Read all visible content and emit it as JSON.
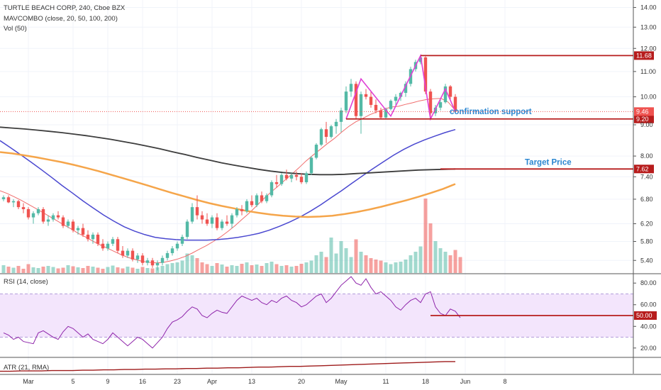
{
  "header": {
    "symbol": "TURTLE BEACH CORP, 240, Cboe BZX",
    "indicator": "MAVCOMBO (close, 20, 50, 100, 200)",
    "volume": "Vol (50)"
  },
  "rsi_panel": {
    "label": "RSI (14, close)"
  },
  "atr_panel": {
    "label": "ATR (21, RMA)"
  },
  "colors": {
    "up": "#53b9a6",
    "down": "#ef5350",
    "ma20": "#f06b6b",
    "ma50": "#4a48d0",
    "ma100": "#f5a54a",
    "ma200": "#3d3d3d",
    "pattern": "#e040d6",
    "level": "#b71c1c",
    "annotation": "#2a86d1",
    "rsi": "#8e24aa",
    "rsi_band": "#f3e5fc",
    "atr": "#9e1b1b"
  },
  "chart_data": [
    {
      "type": "candlestick",
      "title": "TURTLE BEACH CORP, 240, Cboe BZX",
      "xlabel": "",
      "ylabel": "",
      "ylim": [
        5.15,
        14.4
      ],
      "y_scale": "log",
      "yticks": [
        "14.00",
        "13.00",
        "12.00",
        "11.00",
        "10.00",
        "9.00",
        "8.00",
        "7.40",
        "6.80",
        "6.20",
        "5.80",
        "5.40"
      ],
      "xticks": [
        "Mar",
        "5",
        "9",
        "16",
        "23",
        "Apr",
        "13",
        "20",
        "May",
        "11",
        "18",
        "Jun",
        "8"
      ],
      "grid": true,
      "candles": [
        [
          6.8,
          6.9,
          6.75,
          6.85
        ],
        [
          6.85,
          6.9,
          6.7,
          6.72
        ],
        [
          6.72,
          6.8,
          6.6,
          6.75
        ],
        [
          6.75,
          6.78,
          6.55,
          6.6
        ],
        [
          6.6,
          6.7,
          6.45,
          6.55
        ],
        [
          6.55,
          6.6,
          6.3,
          6.35
        ],
        [
          6.35,
          6.5,
          6.2,
          6.45
        ],
        [
          6.45,
          6.6,
          6.4,
          6.55
        ],
        [
          6.55,
          6.6,
          6.2,
          6.25
        ],
        [
          6.25,
          6.4,
          6.15,
          6.3
        ],
        [
          6.3,
          6.45,
          6.25,
          6.4
        ],
        [
          6.4,
          6.5,
          6.3,
          6.35
        ],
        [
          6.35,
          6.4,
          6.1,
          6.15
        ],
        [
          6.15,
          6.3,
          6.1,
          6.25
        ],
        [
          6.25,
          6.3,
          6.0,
          6.05
        ],
        [
          6.05,
          6.15,
          5.95,
          6.1
        ],
        [
          6.1,
          6.2,
          5.9,
          5.95
        ],
        [
          5.95,
          6.05,
          5.8,
          5.85
        ],
        [
          5.85,
          6.0,
          5.75,
          5.95
        ],
        [
          5.95,
          6.0,
          5.7,
          5.75
        ],
        [
          5.75,
          5.85,
          5.6,
          5.65
        ],
        [
          5.65,
          5.8,
          5.6,
          5.75
        ],
        [
          5.75,
          5.9,
          5.7,
          5.85
        ],
        [
          5.85,
          5.9,
          5.55,
          5.6
        ],
        [
          5.6,
          5.7,
          5.45,
          5.5
        ],
        [
          5.5,
          5.65,
          5.45,
          5.6
        ],
        [
          5.6,
          5.65,
          5.38,
          5.42
        ],
        [
          5.42,
          5.55,
          5.35,
          5.5
        ],
        [
          5.5,
          5.55,
          5.3,
          5.35
        ],
        [
          5.35,
          5.45,
          5.3,
          5.4
        ],
        [
          5.4,
          5.45,
          5.25,
          5.3
        ],
        [
          5.3,
          5.4,
          5.2,
          5.35
        ],
        [
          5.35,
          5.5,
          5.3,
          5.45
        ],
        [
          5.45,
          5.6,
          5.4,
          5.55
        ],
        [
          5.55,
          5.7,
          5.5,
          5.65
        ],
        [
          5.65,
          5.8,
          5.6,
          5.75
        ],
        [
          5.75,
          5.95,
          5.7,
          5.9
        ],
        [
          5.9,
          6.3,
          5.85,
          6.25
        ],
        [
          6.25,
          6.7,
          6.2,
          6.6
        ],
        [
          6.6,
          6.9,
          6.3,
          6.4
        ],
        [
          6.4,
          6.5,
          6.2,
          6.3
        ],
        [
          6.3,
          6.45,
          6.15,
          6.2
        ],
        [
          6.2,
          6.4,
          6.1,
          6.35
        ],
        [
          6.35,
          6.45,
          6.05,
          6.1
        ],
        [
          6.1,
          6.3,
          6.05,
          6.25
        ],
        [
          6.25,
          6.4,
          6.15,
          6.2
        ],
        [
          6.2,
          6.45,
          6.1,
          6.4
        ],
        [
          6.4,
          6.6,
          6.35,
          6.55
        ],
        [
          6.55,
          6.65,
          6.4,
          6.5
        ],
        [
          6.5,
          6.8,
          6.45,
          6.75
        ],
        [
          6.75,
          6.9,
          6.6,
          6.65
        ],
        [
          6.65,
          6.95,
          6.6,
          6.9
        ],
        [
          6.9,
          7.0,
          6.7,
          6.75
        ],
        [
          6.75,
          6.95,
          6.7,
          6.9
        ],
        [
          6.9,
          7.3,
          6.85,
          7.25
        ],
        [
          7.25,
          7.45,
          7.1,
          7.2
        ],
        [
          7.2,
          7.5,
          7.15,
          7.45
        ],
        [
          7.45,
          7.6,
          7.3,
          7.35
        ],
        [
          7.35,
          7.5,
          7.25,
          7.45
        ],
        [
          7.45,
          7.55,
          7.3,
          7.4
        ],
        [
          7.4,
          7.5,
          7.2,
          7.25
        ],
        [
          7.25,
          7.55,
          7.2,
          7.5
        ],
        [
          7.5,
          8.0,
          7.45,
          7.95
        ],
        [
          7.95,
          8.4,
          7.9,
          8.35
        ],
        [
          8.35,
          8.9,
          8.3,
          8.85
        ],
        [
          8.85,
          9.1,
          8.4,
          8.6
        ],
        [
          8.6,
          9.0,
          8.55,
          8.95
        ],
        [
          8.95,
          9.2,
          8.7,
          9.1
        ],
        [
          9.1,
          9.6,
          8.75,
          9.5
        ],
        [
          9.5,
          10.4,
          9.4,
          10.2
        ],
        [
          10.2,
          10.7,
          10.0,
          10.5
        ],
        [
          10.5,
          10.6,
          9.2,
          9.3
        ],
        [
          9.3,
          10.2,
          8.7,
          10.1
        ],
        [
          10.1,
          10.3,
          9.9,
          10.0
        ],
        [
          10.0,
          10.2,
          9.6,
          9.7
        ],
        [
          9.7,
          9.9,
          9.4,
          9.5
        ],
        [
          9.5,
          9.6,
          9.2,
          9.25
        ],
        [
          9.25,
          9.6,
          9.2,
          9.55
        ],
        [
          9.55,
          9.9,
          9.5,
          9.85
        ],
        [
          9.85,
          10.1,
          9.7,
          10.0
        ],
        [
          10.0,
          10.2,
          9.85,
          10.15
        ],
        [
          10.15,
          10.6,
          10.0,
          10.5
        ],
        [
          10.5,
          11.2,
          10.4,
          11.1
        ],
        [
          11.1,
          11.5,
          11.0,
          11.4
        ],
        [
          11.4,
          11.68,
          11.3,
          11.6
        ],
        [
          11.6,
          11.65,
          10.1,
          10.2
        ],
        [
          10.2,
          10.3,
          9.25,
          9.4
        ],
        [
          9.4,
          9.7,
          9.3,
          9.6
        ],
        [
          9.6,
          9.9,
          9.5,
          9.8
        ],
        [
          9.8,
          10.5,
          9.75,
          10.4
        ],
        [
          10.4,
          10.45,
          9.9,
          10.0
        ],
        [
          10.0,
          10.1,
          9.4,
          9.46
        ]
      ],
      "volumes": [
        0.22,
        0.18,
        0.15,
        0.2,
        0.12,
        0.25,
        0.16,
        0.14,
        0.18,
        0.2,
        0.17,
        0.13,
        0.15,
        0.22,
        0.19,
        0.16,
        0.14,
        0.2,
        0.18,
        0.15,
        0.12,
        0.17,
        0.21,
        0.16,
        0.13,
        0.18,
        0.15,
        0.12,
        0.17,
        0.14,
        0.13,
        0.16,
        0.2,
        0.25,
        0.28,
        0.3,
        0.35,
        0.55,
        0.5,
        0.42,
        0.3,
        0.25,
        0.2,
        0.28,
        0.24,
        0.18,
        0.22,
        0.2,
        0.26,
        0.3,
        0.22,
        0.24,
        0.2,
        0.28,
        0.32,
        0.25,
        0.2,
        0.22,
        0.18,
        0.2,
        0.26,
        0.3,
        0.35,
        0.5,
        0.6,
        0.45,
        1.0,
        0.55,
        0.9,
        0.7,
        0.45,
        0.95,
        0.6,
        0.5,
        0.42,
        0.38,
        0.35,
        0.3,
        0.25,
        0.3,
        0.32,
        0.38,
        0.5,
        0.6,
        0.75,
        2.1,
        1.4,
        0.9,
        0.7,
        0.6,
        0.5,
        0.65,
        0.45
      ],
      "ma": [
        {
          "name": "MAVCOMBO 20",
          "period": 20,
          "values": [
            7.02,
            6.95,
            6.86,
            6.77,
            6.67,
            6.57,
            6.47,
            6.37,
            6.27,
            6.17,
            6.08,
            5.98,
            5.9,
            5.81,
            5.73,
            5.66,
            5.59,
            5.52,
            5.46,
            5.42,
            5.38,
            5.36,
            5.35,
            5.36,
            5.39,
            5.43,
            5.48,
            5.55,
            5.63,
            5.71,
            5.8,
            5.9,
            6.02,
            6.15,
            6.3,
            6.45,
            6.62,
            6.8,
            6.97,
            7.13,
            7.3,
            7.47,
            7.65,
            7.85,
            8.03,
            8.2,
            8.38,
            8.55,
            8.75,
            8.94,
            9.1,
            9.22,
            9.35,
            9.45,
            9.55,
            9.62,
            9.65,
            9.72,
            9.78,
            9.85,
            9.9,
            9.93,
            9.94,
            9.8,
            9.5
          ]
        },
        {
          "name": "MAVCOMBO 50",
          "period": 50,
          "values": [
            8.48,
            8.26,
            8.04,
            7.82,
            7.6,
            7.38,
            7.16,
            6.96,
            6.76,
            6.58,
            6.41,
            6.26,
            6.13,
            6.03,
            5.95,
            5.89,
            5.86,
            5.84,
            5.83,
            5.83,
            5.83,
            5.84,
            5.86,
            5.89,
            5.93,
            5.98,
            6.05,
            6.14,
            6.24,
            6.36,
            6.5,
            6.66,
            6.84,
            7.02,
            7.22,
            7.42,
            7.62,
            7.82,
            8.02,
            8.2,
            8.36,
            8.5,
            8.62,
            8.74,
            8.84
          ]
        },
        {
          "name": "MAVCOMBO 100",
          "period": 100,
          "values": [
            8.12,
            8.08,
            8.02,
            7.96,
            7.89,
            7.82,
            7.74,
            7.65,
            7.56,
            7.46,
            7.36,
            7.26,
            7.16,
            7.06,
            6.96,
            6.87,
            6.78,
            6.7,
            6.63,
            6.57,
            6.51,
            6.46,
            6.42,
            6.39,
            6.37,
            6.36,
            6.37,
            6.39,
            6.43,
            6.48,
            6.54,
            6.61,
            6.69,
            6.77,
            6.86,
            6.96,
            7.07,
            7.2
          ]
        },
        {
          "name": "MAVCOMBO 200",
          "period": 200,
          "values": [
            8.92,
            8.89,
            8.86,
            8.82,
            8.78,
            8.74,
            8.69,
            8.64,
            8.58,
            8.52,
            8.45,
            8.38,
            8.3,
            8.22,
            8.13,
            8.05,
            7.96,
            7.88,
            7.8,
            7.73,
            7.67,
            7.61,
            7.56,
            7.52,
            7.49,
            7.47,
            7.46,
            7.46,
            7.47,
            7.49,
            7.51,
            7.53,
            7.55,
            7.57,
            7.59,
            7.6,
            7.61,
            7.62
          ]
        }
      ],
      "pattern": {
        "name": "double top",
        "points": [
          [
            9.2,
            69
          ],
          [
            10.7,
            72
          ],
          [
            9.3,
            78
          ],
          [
            11.68,
            84
          ],
          [
            9.2,
            86
          ],
          [
            10.3,
            89
          ],
          [
            9.46,
            91
          ]
        ]
      },
      "levels": [
        {
          "value": 11.68,
          "label": "11.68",
          "note": ""
        },
        {
          "value": 9.2,
          "label": "9.20",
          "note": "confirmation support"
        },
        {
          "value": 7.62,
          "label": "7.62",
          "note": "Target Price"
        }
      ],
      "last_price": {
        "value": 9.46,
        "label": "9.46"
      }
    },
    {
      "type": "line",
      "title": "RSI (14, close)",
      "ylim": [
        12,
        88
      ],
      "yticks": [
        "80.00",
        "60.00",
        "40.00",
        "20.00"
      ],
      "band": [
        30,
        70
      ],
      "level": {
        "value": 50.0,
        "label": "50.00"
      },
      "values": [
        34,
        32,
        28,
        30,
        26,
        25,
        24,
        34,
        36,
        33,
        30,
        28,
        35,
        40,
        38,
        34,
        30,
        33,
        28,
        26,
        24,
        28,
        34,
        30,
        26,
        22,
        26,
        30,
        28,
        24,
        20,
        25,
        30,
        38,
        44,
        46,
        49,
        54,
        58,
        56,
        50,
        48,
        52,
        55,
        53,
        52,
        58,
        64,
        68,
        66,
        64,
        66,
        62,
        60,
        64,
        62,
        66,
        68,
        64,
        62,
        58,
        60,
        64,
        68,
        70,
        62,
        66,
        72,
        78,
        82,
        86,
        80,
        78,
        84,
        76,
        70,
        72,
        68,
        64,
        58,
        55,
        60,
        64,
        66,
        62,
        70,
        72,
        58,
        52,
        50,
        56,
        54,
        48
      ]
    },
    {
      "type": "line",
      "title": "ATR (21, RMA)",
      "ylim": [
        0.15,
        0.6
      ],
      "values": [
        0.22,
        0.22,
        0.23,
        0.23,
        0.23,
        0.24,
        0.24,
        0.24,
        0.25,
        0.25,
        0.26,
        0.26,
        0.27,
        0.27,
        0.28,
        0.28,
        0.29,
        0.29,
        0.3,
        0.3,
        0.31,
        0.31,
        0.32,
        0.32,
        0.33,
        0.34,
        0.34,
        0.35,
        0.36,
        0.36,
        0.37,
        0.38,
        0.39,
        0.4,
        0.41,
        0.42,
        0.43,
        0.44,
        0.45,
        0.46,
        0.47,
        0.48,
        0.49,
        0.5,
        0.5
      ]
    }
  ]
}
